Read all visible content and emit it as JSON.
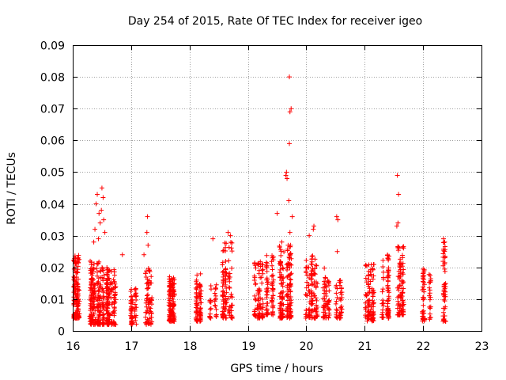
{
  "chart_data": {
    "type": "scatter",
    "title": "Day 254 of 2015, Rate Of TEC Index for receiver igeo",
    "xlabel": "GPS time / hours",
    "ylabel": "ROTI / TECUs",
    "xlim": [
      16,
      23
    ],
    "ylim": [
      0,
      0.09
    ],
    "grid": true,
    "marker": "+",
    "marker_color": "#ff0000",
    "x_ticks": [
      "16",
      "17",
      "18",
      "19",
      "20",
      "21",
      "22",
      "23"
    ],
    "y_ticks": [
      "0",
      "0.01",
      "0.02",
      "0.03",
      "0.04",
      "0.05",
      "0.06",
      "0.07",
      "0.08",
      "0.09"
    ],
    "clusters": [
      {
        "x": [
          16.0,
          16.12
        ],
        "y": [
          0.004,
          0.024
        ],
        "n": 130
      },
      {
        "x": [
          16.3,
          16.55
        ],
        "y": [
          0.002,
          0.022
        ],
        "n": 220
      },
      {
        "x": [
          16.55,
          16.78
        ],
        "y": [
          0.002,
          0.02
        ],
        "n": 140
      },
      {
        "x": [
          17.0,
          17.15
        ],
        "y": [
          0.002,
          0.014
        ],
        "n": 60
      },
      {
        "x": [
          17.2,
          17.35
        ],
        "y": [
          0.002,
          0.02
        ],
        "n": 70
      },
      {
        "x": [
          17.55,
          17.8
        ],
        "y": [
          0.003,
          0.018
        ],
        "n": 130
      },
      {
        "x": [
          18.05,
          18.2
        ],
        "y": [
          0.003,
          0.018
        ],
        "n": 80
      },
      {
        "x": [
          18.35,
          18.45
        ],
        "y": [
          0.004,
          0.015
        ],
        "n": 30
      },
      {
        "x": [
          18.55,
          18.75
        ],
        "y": [
          0.004,
          0.028
        ],
        "n": 110
      },
      {
        "x": [
          19.1,
          19.25
        ],
        "y": [
          0.004,
          0.022
        ],
        "n": 80
      },
      {
        "x": [
          19.3,
          19.45
        ],
        "y": [
          0.005,
          0.024
        ],
        "n": 70
      },
      {
        "x": [
          19.55,
          19.75
        ],
        "y": [
          0.004,
          0.027
        ],
        "n": 170
      },
      {
        "x": [
          20.0,
          20.2
        ],
        "y": [
          0.004,
          0.024
        ],
        "n": 110
      },
      {
        "x": [
          20.3,
          20.42
        ],
        "y": [
          0.004,
          0.02
        ],
        "n": 60
      },
      {
        "x": [
          20.48,
          20.6
        ],
        "y": [
          0.004,
          0.016
        ],
        "n": 45
      },
      {
        "x": [
          20.95,
          21.15
        ],
        "y": [
          0.003,
          0.021
        ],
        "n": 100
      },
      {
        "x": [
          21.3,
          21.45
        ],
        "y": [
          0.004,
          0.024
        ],
        "n": 80
      },
      {
        "x": [
          21.55,
          21.7
        ],
        "y": [
          0.005,
          0.027
        ],
        "n": 90
      },
      {
        "x": [
          22.0,
          22.12
        ],
        "y": [
          0.003,
          0.02
        ],
        "n": 60
      },
      {
        "x": [
          22.3,
          22.42
        ],
        "y": [
          0.003,
          0.029
        ],
        "n": 50
      }
    ],
    "outliers": [
      {
        "x": 16.42,
        "y": 0.043
      },
      {
        "x": 16.4,
        "y": 0.04
      },
      {
        "x": 16.45,
        "y": 0.037
      },
      {
        "x": 16.38,
        "y": 0.032
      },
      {
        "x": 16.36,
        "y": 0.028
      },
      {
        "x": 16.44,
        "y": 0.029
      },
      {
        "x": 16.5,
        "y": 0.045
      },
      {
        "x": 16.52,
        "y": 0.042
      },
      {
        "x": 16.49,
        "y": 0.038
      },
      {
        "x": 16.53,
        "y": 0.035
      },
      {
        "x": 16.55,
        "y": 0.031
      },
      {
        "x": 16.47,
        "y": 0.034
      },
      {
        "x": 17.28,
        "y": 0.036
      },
      {
        "x": 17.27,
        "y": 0.031
      },
      {
        "x": 17.29,
        "y": 0.027
      },
      {
        "x": 17.22,
        "y": 0.024
      },
      {
        "x": 16.85,
        "y": 0.024
      },
      {
        "x": 18.4,
        "y": 0.029
      },
      {
        "x": 18.66,
        "y": 0.031
      },
      {
        "x": 18.7,
        "y": 0.03
      },
      {
        "x": 19.5,
        "y": 0.037
      },
      {
        "x": 19.58,
        "y": 0.028
      },
      {
        "x": 19.65,
        "y": 0.049
      },
      {
        "x": 19.67,
        "y": 0.048
      },
      {
        "x": 19.66,
        "y": 0.05
      },
      {
        "x": 19.7,
        "y": 0.041
      },
      {
        "x": 19.71,
        "y": 0.059
      },
      {
        "x": 19.72,
        "y": 0.069
      },
      {
        "x": 19.74,
        "y": 0.07
      },
      {
        "x": 19.71,
        "y": 0.08
      },
      {
        "x": 19.76,
        "y": 0.036
      },
      {
        "x": 19.72,
        "y": 0.031
      },
      {
        "x": 20.05,
        "y": 0.03
      },
      {
        "x": 20.12,
        "y": 0.032
      },
      {
        "x": 20.13,
        "y": 0.033
      },
      {
        "x": 20.52,
        "y": 0.036
      },
      {
        "x": 20.54,
        "y": 0.035
      },
      {
        "x": 20.53,
        "y": 0.025
      },
      {
        "x": 21.56,
        "y": 0.049
      },
      {
        "x": 21.58,
        "y": 0.043
      },
      {
        "x": 21.57,
        "y": 0.034
      },
      {
        "x": 21.55,
        "y": 0.033
      },
      {
        "x": 22.35,
        "y": 0.029
      },
      {
        "x": 22.37,
        "y": 0.028
      }
    ]
  }
}
